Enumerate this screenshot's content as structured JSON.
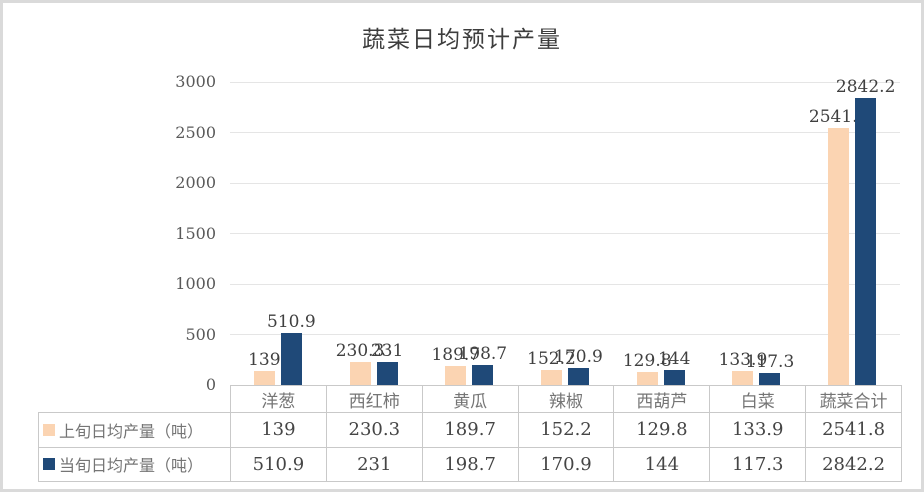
{
  "chart_data": {
    "type": "bar",
    "title": "蔬菜日均预计产量",
    "categories": [
      "洋葱",
      "西红柿",
      "黄瓜",
      "辣椒",
      "西葫芦",
      "白菜",
      "蔬菜合计"
    ],
    "series": [
      {
        "name": "上旬日均产量（吨）",
        "color": "#FBD4B2",
        "values": [
          139,
          230.3,
          189.7,
          152.2,
          129.8,
          133.9,
          2541.8
        ]
      },
      {
        "name": "当旬日均产量（吨）",
        "color": "#1F4978",
        "values": [
          510.9,
          231,
          198.7,
          170.9,
          144,
          117.3,
          2842.2
        ]
      }
    ],
    "xlabel": "",
    "ylabel": "",
    "ylim": [
      0,
      3000
    ],
    "yticks": [
      0,
      500,
      1000,
      1500,
      2000,
      2500,
      3000
    ],
    "grid": true,
    "data_labels": true,
    "legend_position": "data-table-left"
  },
  "colors": {
    "series1": "#FBD4B2",
    "series2": "#1F4978",
    "gridline": "#E5E5E5",
    "table_border": "#C9C9C9",
    "frame_border": "#DADADA",
    "label_text": "#404040",
    "muted_text": "#757575",
    "axis_text": "#595959",
    "title_text": "#3D3D3D"
  }
}
